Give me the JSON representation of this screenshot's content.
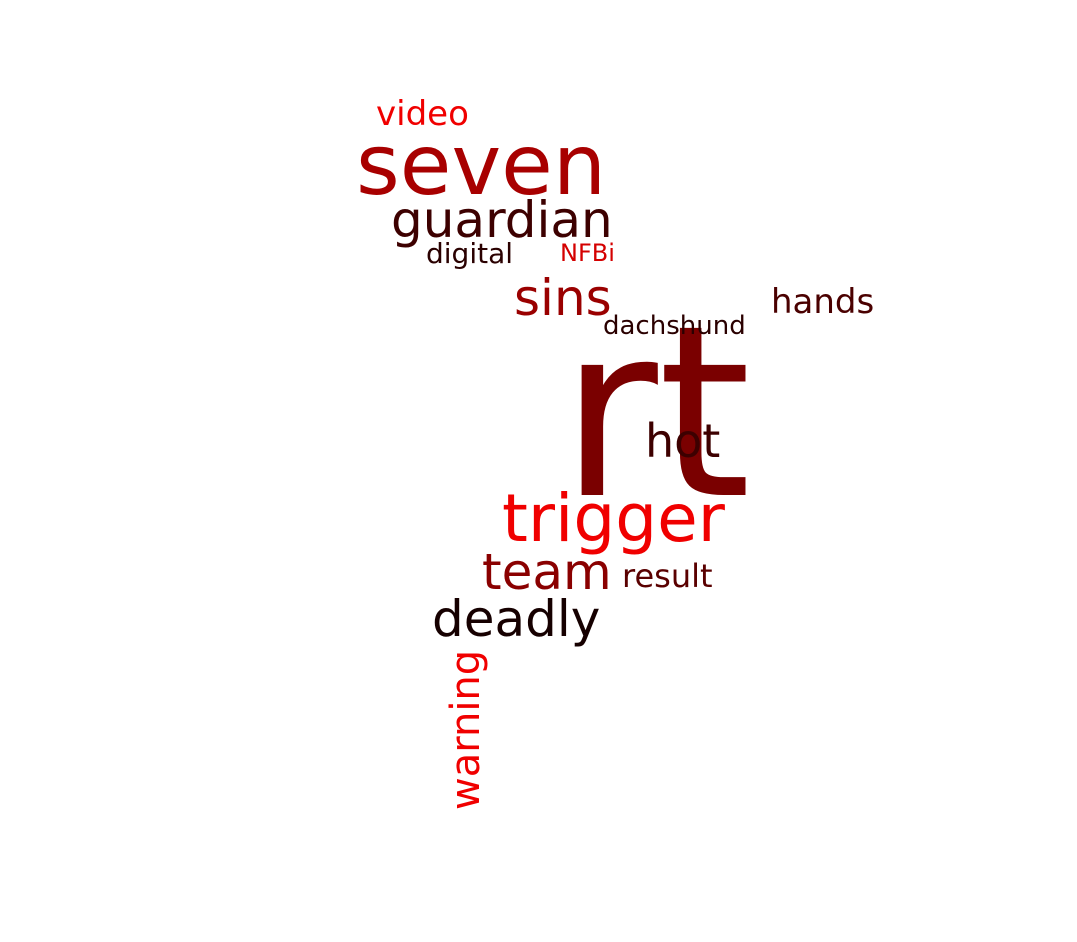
{
  "word_cloud": {
    "words": [
      {
        "text": "rt",
        "color": "#7a0000"
      },
      {
        "text": "seven",
        "color": "#a80000"
      },
      {
        "text": "trigger",
        "color": "#f00000"
      },
      {
        "text": "guardian",
        "color": "#3d0000"
      },
      {
        "text": "team",
        "color": "#8a0000"
      },
      {
        "text": "deadly",
        "color": "#160000"
      },
      {
        "text": "sins",
        "color": "#9a0000"
      },
      {
        "text": "hot",
        "color": "#3d0000"
      },
      {
        "text": "video",
        "color": "#f00000"
      },
      {
        "text": "hands",
        "color": "#4a0000"
      },
      {
        "text": "result",
        "color": "#5a0000"
      },
      {
        "text": "digital",
        "color": "#2a0000"
      },
      {
        "text": "NFBi",
        "color": "#d40000"
      },
      {
        "text": "dachshund",
        "color": "#2a0000"
      },
      {
        "text": "warning",
        "color": "#f00000"
      }
    ]
  }
}
